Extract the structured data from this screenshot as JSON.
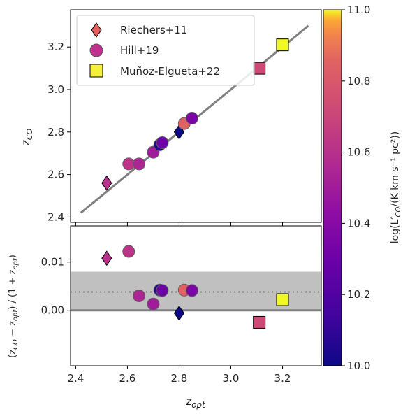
{
  "chart_data": {
    "type": "scatter",
    "top_panel": {
      "ylabel_main": "z",
      "ylabel_sub": "CO",
      "xlim": [
        2.38,
        3.35
      ],
      "ylim": [
        2.375,
        3.375
      ],
      "xticks": [
        2.4,
        2.6,
        2.8,
        3.0,
        3.2
      ],
      "yticks": [
        2.4,
        2.6,
        2.8,
        3.0,
        3.2
      ],
      "ytick_labels": [
        "2.4",
        "2.6",
        "2.8",
        "3.0",
        "3.2"
      ],
      "one_to_one_line": [
        [
          2.42,
          2.42
        ],
        [
          3.3,
          3.3
        ]
      ],
      "legend": {
        "position": "upper left",
        "entries": [
          {
            "label": "Riechers+11",
            "marker": "diamond",
            "color": "#e35f5d"
          },
          {
            "label": "Hill+19",
            "marker": "circle",
            "color": "#c2308f"
          },
          {
            "label": "Muñoz-Elgueta+22",
            "marker": "square",
            "color": "#f5f03a"
          }
        ]
      }
    },
    "bottom_panel": {
      "ylabel_main": "(z",
      "ylabel_sub1": "CO",
      "ylabel_mid": " − z",
      "ylabel_sub2": "opt",
      "ylabel_end": ") / (1 + z",
      "ylabel_sub3": "opt",
      "ylabel_close": ")",
      "xlabel_main": "z",
      "xlabel_sub": "opt",
      "xlim": [
        2.38,
        3.35
      ],
      "ylim": [
        -0.0115,
        0.0175
      ],
      "yticks": [
        0.0,
        0.01
      ],
      "ytick_labels": [
        "0.00",
        "0.01"
      ],
      "xtick_labels": [
        "2.4",
        "2.6",
        "2.8",
        "3.0",
        "3.2"
      ],
      "shaded_band": [
        0.0,
        0.008
      ],
      "mean_offset": 0.0038
    },
    "colorbar": {
      "label_pre": "log(L′",
      "label_sub": "CO",
      "label_post": "/(K km s⁻¹ pc²))",
      "range": [
        10.0,
        11.0
      ],
      "ticks": [
        10.0,
        10.2,
        10.4,
        10.6,
        10.8,
        11.0
      ],
      "tick_labels": [
        "10.0",
        "10.2",
        "10.4",
        "10.6",
        "10.8",
        "11.0"
      ],
      "colormap": "plasma"
    },
    "series": [
      {
        "name": "Riechers+11",
        "marker": "diamond",
        "points": [
          {
            "x_opt": 2.52,
            "z_co": 2.56,
            "offset": 0.0108,
            "logL": 10.6
          },
          {
            "x_opt": 2.8,
            "z_co": 2.8,
            "offset": -0.0006,
            "logL": 10.0
          }
        ]
      },
      {
        "name": "Hill+19",
        "marker": "circle",
        "points": [
          {
            "x_opt": 2.605,
            "z_co": 2.65,
            "offset": 0.0122,
            "logL": 10.62
          },
          {
            "x_opt": 2.645,
            "z_co": 2.65,
            "offset": 0.003,
            "logL": 10.55
          },
          {
            "x_opt": 2.7,
            "z_co": 2.705,
            "offset": 0.0013,
            "logL": 10.5
          },
          {
            "x_opt": 2.725,
            "z_co": 2.74,
            "offset": 0.0042,
            "logL": 10.05
          },
          {
            "x_opt": 2.735,
            "z_co": 2.75,
            "offset": 0.0041,
            "logL": 10.3
          },
          {
            "x_opt": 2.82,
            "z_co": 2.84,
            "offset": 0.0042,
            "logL": 10.85
          },
          {
            "x_opt": 2.85,
            "z_co": 2.865,
            "offset": 0.0041,
            "logL": 10.35
          }
        ]
      },
      {
        "name": "Muñoz-Elgueta+22",
        "marker": "square",
        "points": [
          {
            "x_opt": 3.11,
            "z_co": 3.1,
            "offset": -0.0025,
            "logL": 10.72
          },
          {
            "x_opt": 3.2,
            "z_co": 3.21,
            "offset": 0.0022,
            "logL": 11.0
          }
        ]
      }
    ]
  }
}
